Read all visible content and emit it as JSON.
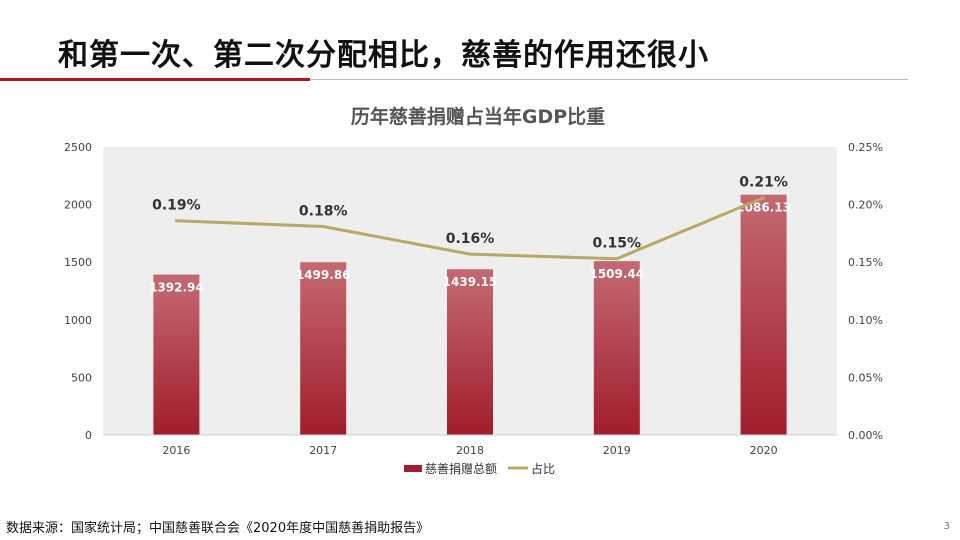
{
  "slide": {
    "title": "和第一次、第二次分配相比，慈善的作用还很小",
    "source": "数据来源：国家统计局；中国慈善联合会《2020年度中国慈善捐助报告》",
    "page_number": "3"
  },
  "colors": {
    "accent": "#b5121b",
    "bar_top": "#c46a72",
    "bar_bottom": "#a11d2c",
    "line": "#b7a862",
    "plot_bg": "#eeeeee"
  },
  "chart_data": {
    "type": "bar",
    "title": "历年慈善捐赠占当年GDP比重",
    "categories": [
      "2016",
      "2017",
      "2018",
      "2019",
      "2020"
    ],
    "y_left": {
      "min": 0,
      "max": 2500,
      "ticks": [
        0,
        500,
        1000,
        1500,
        2000,
        2500
      ],
      "tick_labels": [
        "0",
        "500",
        "1000",
        "1500",
        "2000",
        "2500"
      ]
    },
    "y_right": {
      "min": 0,
      "max": 0.25,
      "ticks": [
        0,
        0.05,
        0.1,
        0.15,
        0.2,
        0.25
      ],
      "tick_labels": [
        "0.00%",
        "0.05%",
        "0.10%",
        "0.15%",
        "0.20%",
        "0.25%"
      ]
    },
    "series": [
      {
        "name": "慈善捐赠总额",
        "type": "bar",
        "axis": "left",
        "values": [
          1392.94,
          1499.86,
          1439.15,
          1509.44,
          2086.13
        ],
        "labels": [
          "1392.94",
          "1499.86",
          "1439.15",
          "1509.44",
          "2086.13"
        ]
      },
      {
        "name": "占比",
        "type": "line",
        "axis": "right",
        "values": [
          0.186,
          0.181,
          0.157,
          0.153,
          0.206
        ],
        "labels": [
          "0.19%",
          "0.18%",
          "0.16%",
          "0.15%",
          "0.21%"
        ]
      }
    ],
    "legend_position": "bottom",
    "grid": false
  }
}
